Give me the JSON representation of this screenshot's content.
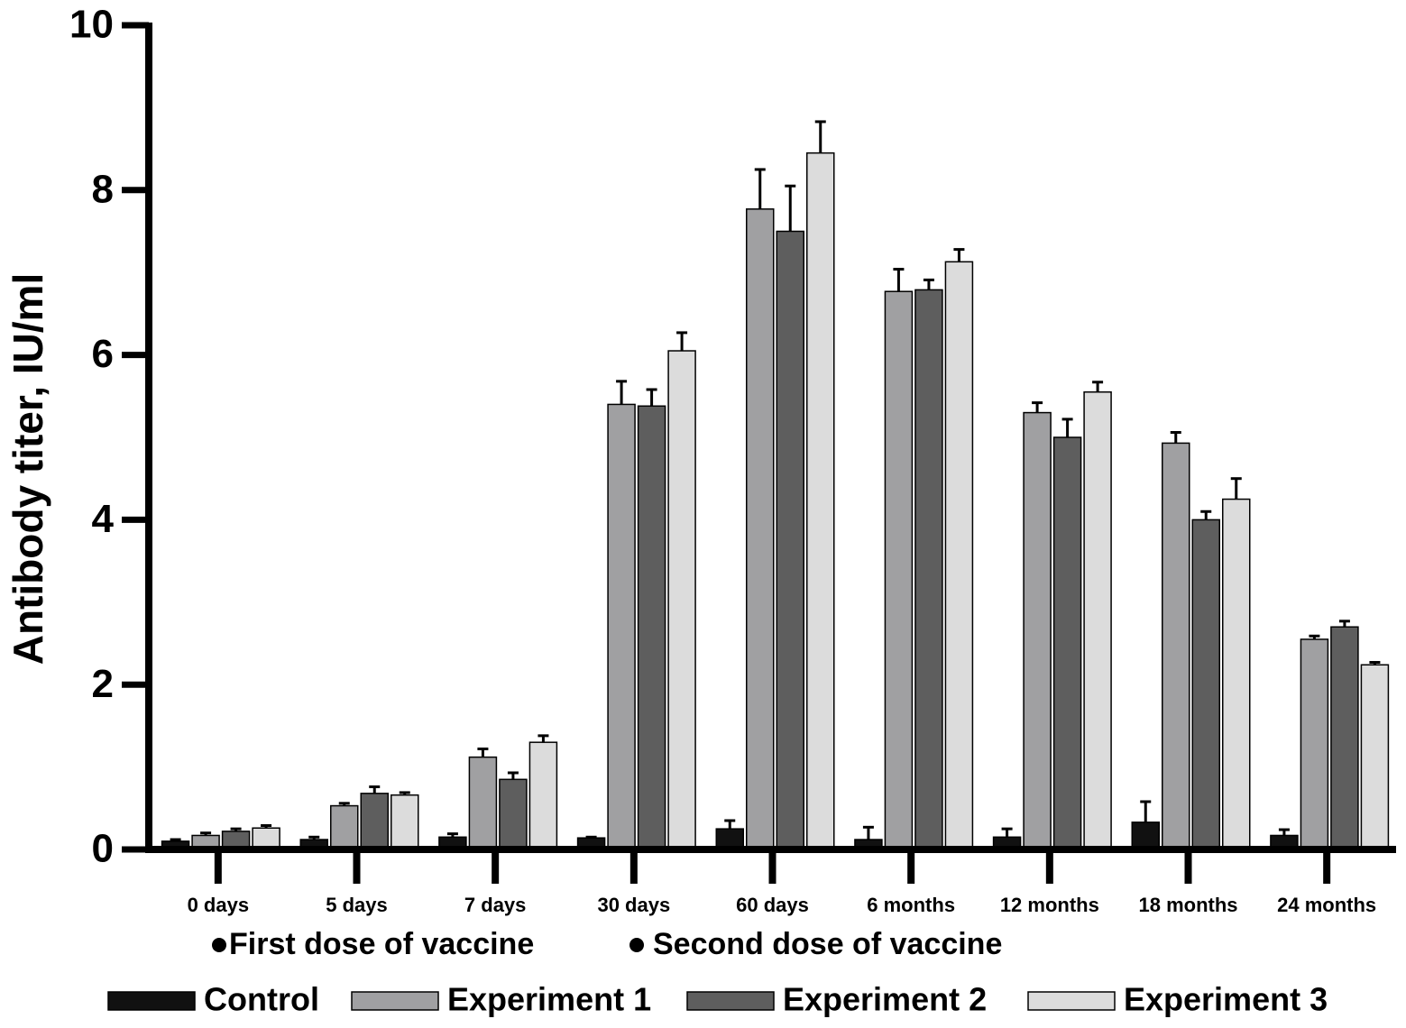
{
  "chart_data": {
    "type": "bar",
    "ylabel": "Antibody titer, IU/ml",
    "categories": [
      "0 days",
      "5 days",
      "7 days",
      "30 days",
      "60 days",
      "6 months",
      "12 months",
      "18 months",
      "24 months"
    ],
    "series": [
      {
        "name": "Control",
        "color": "#111111",
        "values": [
          0.1,
          0.12,
          0.15,
          0.14,
          0.25,
          0.12,
          0.15,
          0.33,
          0.17
        ],
        "errors": [
          0.02,
          0.03,
          0.04,
          0.01,
          0.1,
          0.15,
          0.1,
          0.25,
          0.07
        ]
      },
      {
        "name": "Experiment 1",
        "color": "#a0a0a2",
        "values": [
          0.17,
          0.53,
          1.12,
          5.4,
          7.77,
          6.77,
          5.3,
          4.93,
          2.55
        ],
        "errors": [
          0.03,
          0.03,
          0.1,
          0.28,
          0.48,
          0.27,
          0.12,
          0.13,
          0.04
        ]
      },
      {
        "name": "Experiment 2",
        "color": "#5e5e5e",
        "values": [
          0.22,
          0.68,
          0.85,
          5.38,
          7.5,
          6.79,
          5.0,
          4.0,
          2.7
        ],
        "errors": [
          0.03,
          0.08,
          0.08,
          0.2,
          0.55,
          0.12,
          0.22,
          0.1,
          0.07
        ]
      },
      {
        "name": "Experiment 3",
        "color": "#dcdcdc",
        "values": [
          0.26,
          0.66,
          1.3,
          6.05,
          8.45,
          7.13,
          5.55,
          4.25,
          2.24
        ],
        "errors": [
          0.03,
          0.03,
          0.08,
          0.22,
          0.38,
          0.15,
          0.12,
          0.25,
          0.03
        ]
      }
    ],
    "annotations": [
      "First dose of vaccine",
      "Second dose of vaccine"
    ],
    "ylim": [
      0,
      10
    ],
    "yticks": [
      0,
      2,
      4,
      6,
      8,
      10
    ]
  }
}
